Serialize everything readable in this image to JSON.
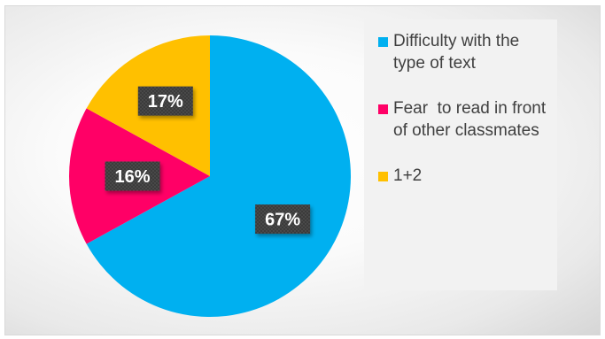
{
  "chart_data": {
    "type": "pie",
    "title": "",
    "categories": [
      "Difficulty with the type of text",
      "Fear  to read in front of other classmates",
      "1+2"
    ],
    "values": [
      67,
      16,
      17
    ],
    "labels": [
      "67%",
      "16%",
      "17%"
    ],
    "colors": [
      "#00b0f0",
      "#ff0066",
      "#ffc000"
    ],
    "start": "12 o'clock",
    "direction": "clockwise",
    "legend": "right"
  },
  "legend": {
    "items": [
      {
        "label": "Difficulty with the type of text",
        "color": "#00b0f0"
      },
      {
        "label": "Fear  to read in front of other classmates",
        "color": "#ff0066"
      },
      {
        "label": "1+2",
        "color": "#ffc000"
      }
    ]
  }
}
